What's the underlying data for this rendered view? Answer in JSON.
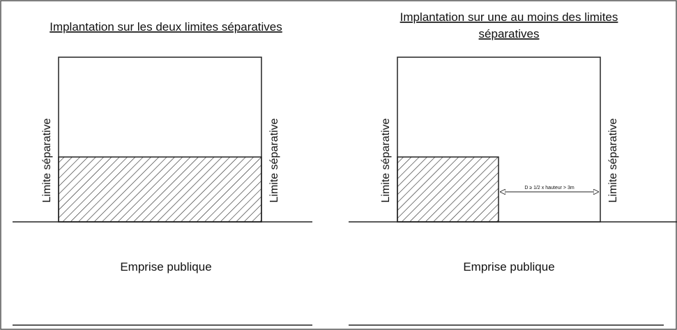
{
  "left": {
    "title": "Implantation sur les deux limites séparatives",
    "limit_left": "Limite séparative",
    "limit_right": "Limite séparative",
    "street": "Emprise publique"
  },
  "right": {
    "title_line1": "Implantation sur une au moins des limites",
    "title_line2": "séparatives",
    "limit_left": "Limite séparative",
    "limit_right": "Limite séparative",
    "distance": "D ≥ 1/2 x hauteur > 3m",
    "street": "Emprise publique"
  }
}
